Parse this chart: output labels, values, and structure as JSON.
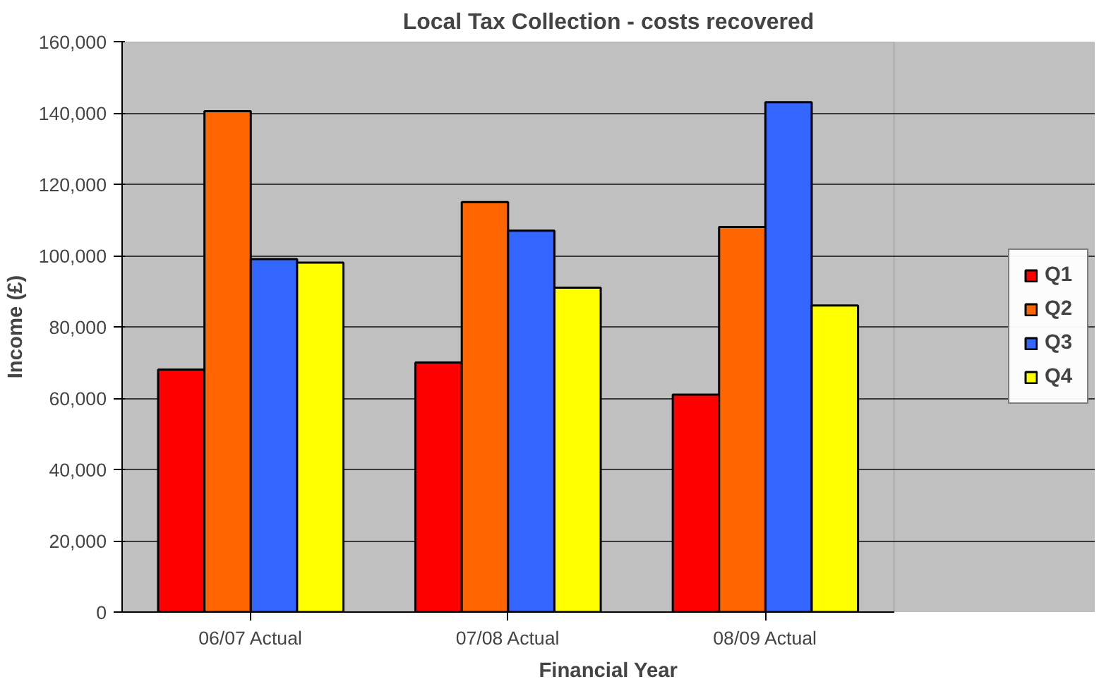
{
  "chart_data": {
    "type": "bar",
    "title": "Local Tax Collection - costs recovered",
    "xlabel": "Financial Year",
    "ylabel": "Income (£)",
    "categories": [
      "06/07 Actual",
      "07/08 Actual",
      "08/09 Actual"
    ],
    "series": [
      {
        "name": "Q1",
        "color": "#ff0000",
        "values": [
          68000,
          70000,
          61000
        ]
      },
      {
        "name": "Q2",
        "color": "#ff6600",
        "values": [
          140500,
          115000,
          108000
        ]
      },
      {
        "name": "Q3",
        "color": "#3366ff",
        "values": [
          99000,
          107000,
          143000
        ]
      },
      {
        "name": "Q4",
        "color": "#ffff00",
        "values": [
          98000,
          91000,
          86000
        ]
      }
    ],
    "ylim": [
      0,
      160000
    ],
    "yticks": [
      {
        "value": 0,
        "label": "0"
      },
      {
        "value": 20000,
        "label": "20,000"
      },
      {
        "value": 40000,
        "label": "40,000"
      },
      {
        "value": 60000,
        "label": "60,000"
      },
      {
        "value": 80000,
        "label": "80,000"
      },
      {
        "value": 100000,
        "label": "100,000"
      },
      {
        "value": 120000,
        "label": "120,000"
      },
      {
        "value": 140000,
        "label": "140,000"
      },
      {
        "value": 160000,
        "label": "160,000"
      }
    ],
    "grid": "y",
    "legend": "right"
  }
}
